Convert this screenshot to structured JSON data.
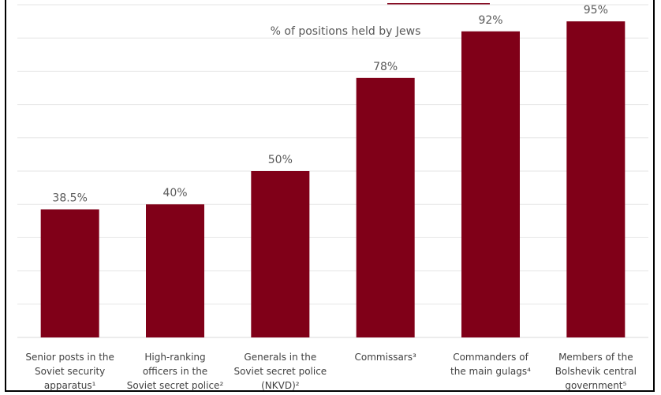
{
  "chart_data": {
    "type": "bar",
    "title": "% of positions held by Jews",
    "categories": [
      [
        "Senior posts in the",
        "Soviet security",
        "apparatus¹"
      ],
      [
        "High-ranking",
        "officers in the",
        "Soviet secret police²"
      ],
      [
        "Generals in the",
        "Soviet secret police",
        "(NKVD)²"
      ],
      [
        "Commissars³"
      ],
      [
        "Commanders of",
        "the main gulags⁴"
      ],
      [
        "Members of the",
        "Bolshevik central",
        "government⁵"
      ]
    ],
    "values": [
      38.5,
      40,
      50,
      78,
      92,
      95
    ],
    "data_labels": [
      "38.5%",
      "40%",
      "50%",
      "78%",
      "92%",
      "95%"
    ],
    "ylim": [
      0,
      100
    ],
    "grid": true,
    "bar_color": "#800018",
    "grid_color": "#e6e6e6"
  }
}
